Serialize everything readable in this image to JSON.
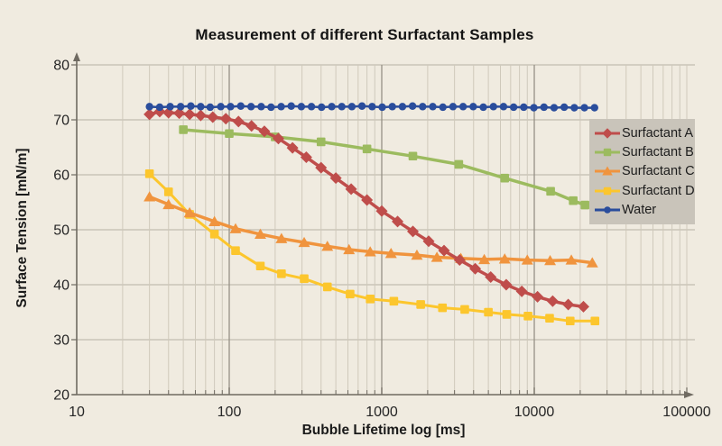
{
  "chart_data": {
    "type": "line",
    "title": "Measurement of different Surfactant Samples",
    "xlabel": "Bubble Lifetime log [ms]",
    "ylabel": "Surface Tension [mN/m]",
    "x_scale": "log",
    "xlim": [
      10,
      100000
    ],
    "ylim": [
      20,
      80
    ],
    "x_ticks": [
      "10",
      "100",
      "1000",
      "10000",
      "100000"
    ],
    "y_ticks": [
      "20",
      "30",
      "40",
      "50",
      "60",
      "70",
      "80"
    ],
    "grid": true,
    "legend_position": "right-inside",
    "background_color": "#f0ebe0",
    "legend_background": "#c9c4ba",
    "axis_color": "#6f6a61",
    "grid_minor_color": "#cfc9bb",
    "grid_major_color": "#969186",
    "grid_horizontal_color": "#b6b0a3",
    "text_color": "#262626",
    "series": [
      {
        "name": "Surfactant A",
        "color": "#bf4d4b",
        "marker": "diamond",
        "x": [
          30,
          35,
          40,
          47,
          55,
          65,
          78,
          95,
          115,
          140,
          170,
          210,
          260,
          320,
          400,
          500,
          630,
          800,
          1000,
          1270,
          1600,
          2030,
          2560,
          3240,
          4100,
          5180,
          6550,
          8280,
          10500,
          13200,
          16700,
          21000
        ],
        "y": [
          71.0,
          71.5,
          71.3,
          71.2,
          71.0,
          70.8,
          70.5,
          70.2,
          69.7,
          68.9,
          67.9,
          66.6,
          64.9,
          63.2,
          61.3,
          59.4,
          57.4,
          55.4,
          53.4,
          51.5,
          49.7,
          47.9,
          46.2,
          44.5,
          42.9,
          41.4,
          40.0,
          38.8,
          37.8,
          37.0,
          36.4,
          36.0
        ]
      },
      {
        "name": "Surfactant B",
        "color": "#9cbb5f",
        "marker": "square",
        "x": [
          50,
          100,
          200,
          400,
          800,
          1600,
          3200,
          6400,
          12800,
          18000,
          21500
        ],
        "y": [
          68.2,
          67.5,
          66.9,
          66.0,
          64.7,
          63.4,
          61.9,
          59.4,
          57.0,
          55.3,
          54.5
        ]
      },
      {
        "name": "Surfactant C",
        "color": "#f0943e",
        "marker": "triangle",
        "x": [
          30,
          40,
          55,
          80,
          110,
          160,
          220,
          310,
          440,
          610,
          840,
          1150,
          1700,
          2300,
          3300,
          4700,
          6400,
          9000,
          12700,
          17500,
          24000
        ],
        "y": [
          56.0,
          54.6,
          53.1,
          51.5,
          50.2,
          49.2,
          48.4,
          47.7,
          47.0,
          46.4,
          46.0,
          45.7,
          45.4,
          45.0,
          44.8,
          44.6,
          44.7,
          44.5,
          44.4,
          44.5,
          44.0
        ]
      },
      {
        "name": "Surfactant D",
        "color": "#fcc62d",
        "marker": "square",
        "x": [
          30,
          40,
          55,
          80,
          110,
          160,
          220,
          310,
          440,
          620,
          840,
          1200,
          1800,
          2500,
          3500,
          5000,
          6600,
          9100,
          12600,
          17200,
          25000
        ],
        "y": [
          60.2,
          56.9,
          52.8,
          49.2,
          46.2,
          43.4,
          42.0,
          41.1,
          39.6,
          38.3,
          37.4,
          37.0,
          36.4,
          35.8,
          35.5,
          35.0,
          34.6,
          34.3,
          33.9,
          33.4,
          33.4
        ]
      },
      {
        "name": "Water",
        "color": "#2a4d9c",
        "marker": "circle",
        "x": [
          30,
          35,
          41,
          48,
          56,
          65,
          75,
          88,
          102,
          119,
          139,
          162,
          188,
          219,
          255,
          297,
          346,
          403,
          470,
          547,
          637,
          742,
          865,
          1007,
          1173,
          1367,
          1592,
          1854,
          2160,
          2516,
          2931,
          3414,
          3977,
          4633,
          5397,
          6287,
          7323,
          8531,
          9937,
          11576,
          13485,
          15708,
          18298,
          21315,
          24830
        ],
        "y": [
          72.4,
          72.3,
          72.4,
          72.4,
          72.5,
          72.4,
          72.3,
          72.4,
          72.4,
          72.5,
          72.4,
          72.4,
          72.3,
          72.4,
          72.5,
          72.4,
          72.4,
          72.3,
          72.4,
          72.4,
          72.4,
          72.5,
          72.4,
          72.3,
          72.4,
          72.4,
          72.5,
          72.4,
          72.4,
          72.3,
          72.4,
          72.4,
          72.4,
          72.3,
          72.4,
          72.4,
          72.3,
          72.3,
          72.2,
          72.3,
          72.2,
          72.3,
          72.2,
          72.2,
          72.2
        ]
      }
    ]
  }
}
